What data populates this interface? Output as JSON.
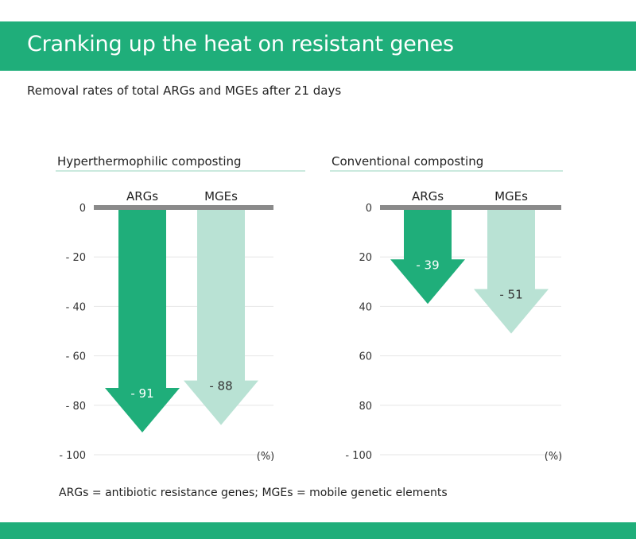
{
  "header": {
    "title": "Cranking up the heat on resistant genes",
    "subtitle": "Removal rates of total ARGs and MGEs after 21 days"
  },
  "footnote": "ARGs = antibiotic resistance genes; MGEs = mobile genetic elements",
  "colors": {
    "brand": "#1fae7a",
    "args": "#1fae7a",
    "mges": "#b9e2d4",
    "baseline": "#8a8a8a",
    "panel_rule": "#b9e2d4",
    "gridline": "#e6e6e6"
  },
  "chart_data": [
    {
      "type": "bar",
      "title": "Hyperthermophilic composting",
      "categories": [
        "ARGs",
        "MGEs"
      ],
      "values": [
        -91,
        -88
      ],
      "value_labels": [
        "- 91",
        "- 88"
      ],
      "ylim": [
        -100,
        0
      ],
      "yticks": [
        0,
        -20,
        -40,
        -60,
        -80,
        -100
      ],
      "ytick_labels": [
        "0",
        "- 20",
        "- 40",
        "- 60",
        "- 80",
        "- 100"
      ],
      "unit_label": "(%)",
      "grid": true
    },
    {
      "type": "bar",
      "title": "Conventional composting",
      "categories": [
        "ARGs",
        "MGEs"
      ],
      "values": [
        -39,
        -51
      ],
      "value_labels": [
        "- 39",
        "- 51"
      ],
      "ylim": [
        -100,
        0
      ],
      "yticks": [
        0,
        -20,
        -40,
        -60,
        -80,
        -100
      ],
      "ytick_labels": [
        "0",
        "20",
        "40",
        "60",
        "80",
        "- 100"
      ],
      "unit_label": "(%)",
      "grid": true
    }
  ]
}
